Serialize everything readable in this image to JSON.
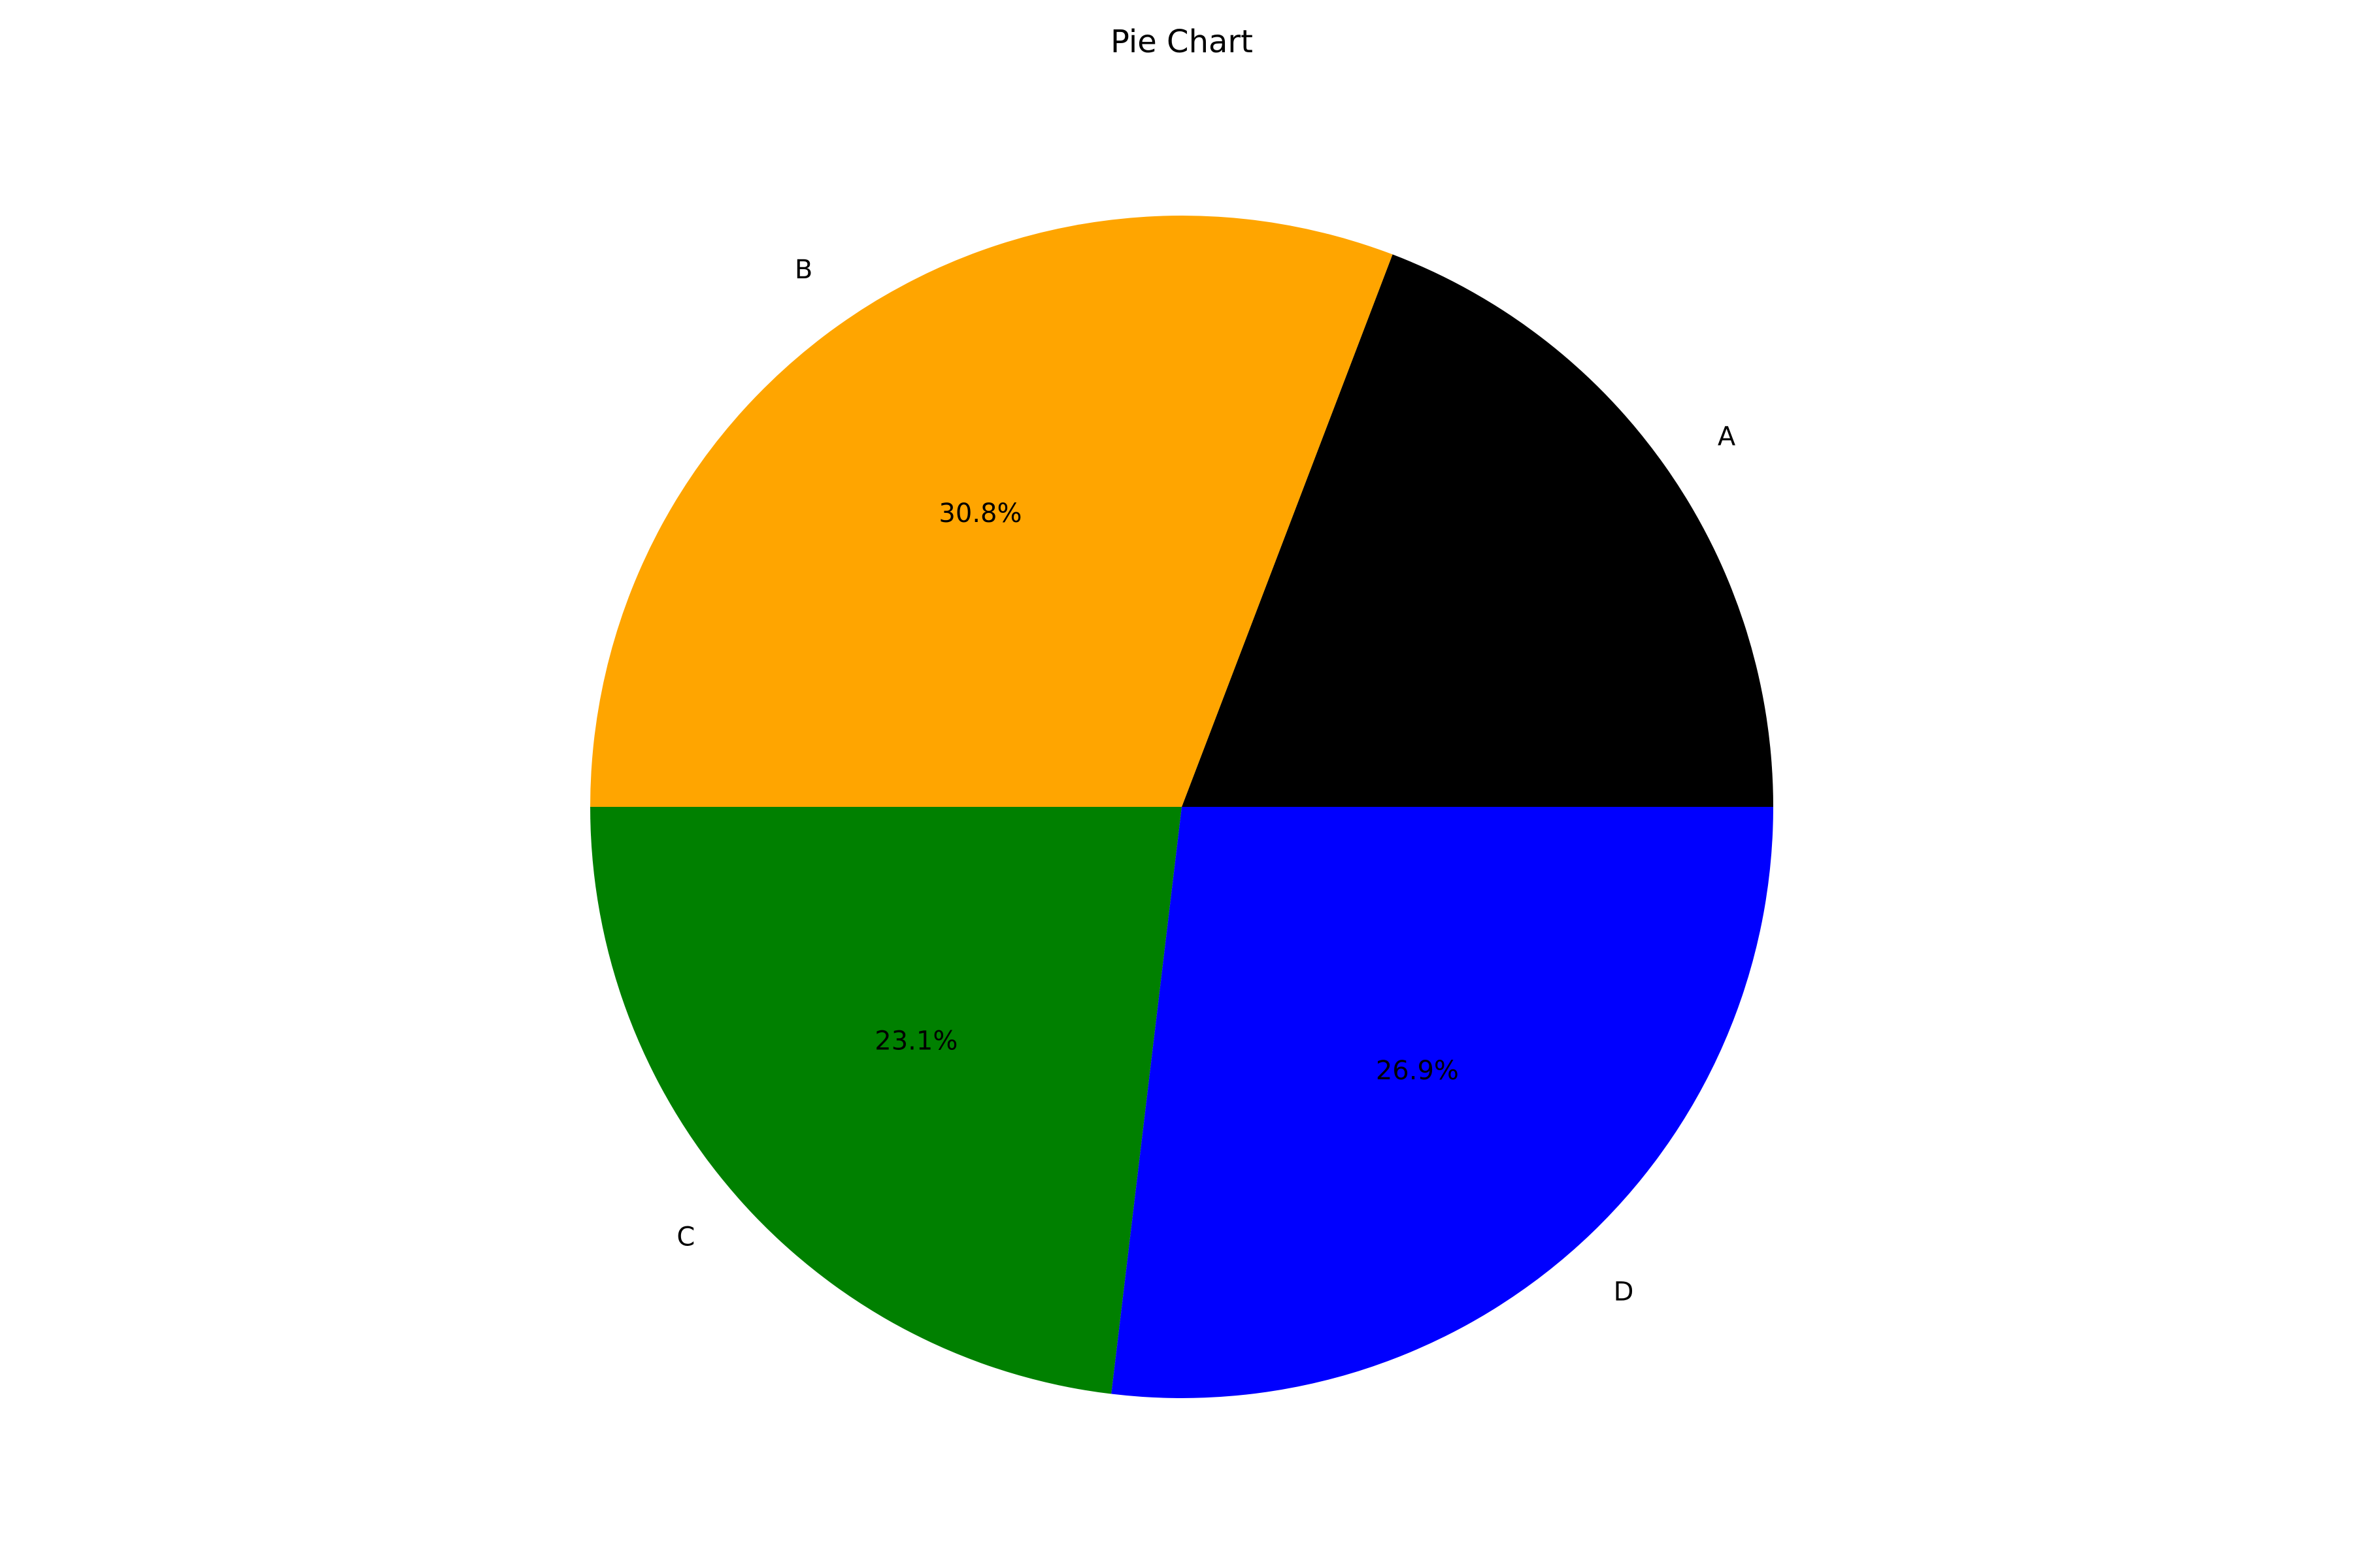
{
  "chart_data": {
    "type": "pie",
    "title": "Pie Chart",
    "categories": [
      "A",
      "B",
      "C",
      "D"
    ],
    "values": [
      19.2,
      30.8,
      23.1,
      26.9
    ],
    "value_labels": [
      "",
      "30.8%",
      "23.1%",
      "26.9%"
    ],
    "colors": [
      "#000000",
      "#ffa500",
      "#008000",
      "#0000ff"
    ],
    "start_angle_deg": 0,
    "direction": "counterclockwise",
    "legend": "none"
  }
}
